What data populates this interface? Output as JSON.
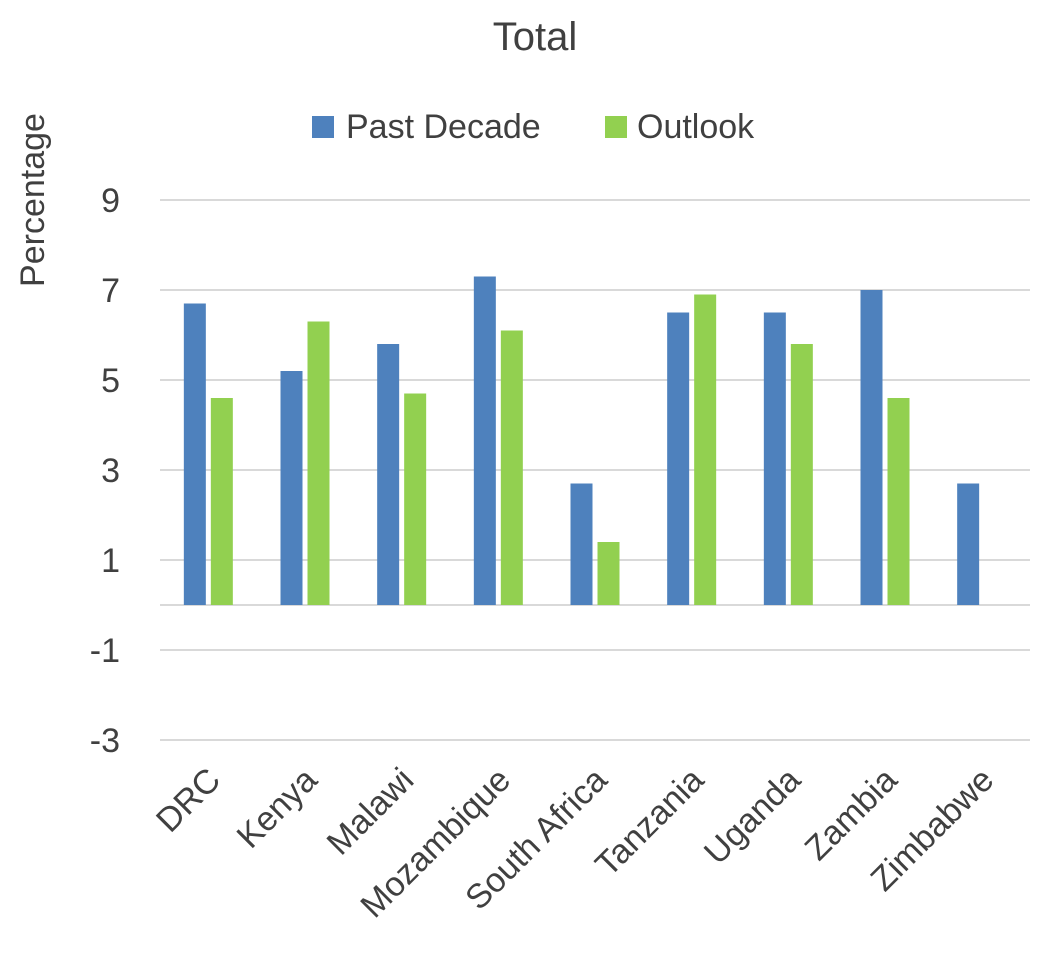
{
  "chart_data": {
    "type": "bar",
    "title": "Total",
    "xlabel": "",
    "ylabel": "Percentage",
    "categories": [
      "DRC",
      "Kenya",
      "Malawi",
      "Mozambique",
      "South Africa",
      "Tanzania",
      "Uganda",
      "Zambia",
      "Zimbabwe"
    ],
    "series": [
      {
        "name": "Past Decade",
        "color": "#4E81BD",
        "values": [
          6.7,
          5.2,
          5.8,
          7.3,
          2.7,
          6.5,
          6.5,
          7.0,
          2.7
        ]
      },
      {
        "name": "Outlook",
        "color": "#92D050",
        "values": [
          4.6,
          6.3,
          4.7,
          6.1,
          1.4,
          6.9,
          5.8,
          4.6,
          0
        ]
      }
    ],
    "ylim": [
      -3,
      9
    ],
    "yticks": [
      "-3",
      "-1",
      "1",
      "3",
      "5",
      "7",
      "9"
    ],
    "grid": true,
    "legend_position": "top"
  }
}
